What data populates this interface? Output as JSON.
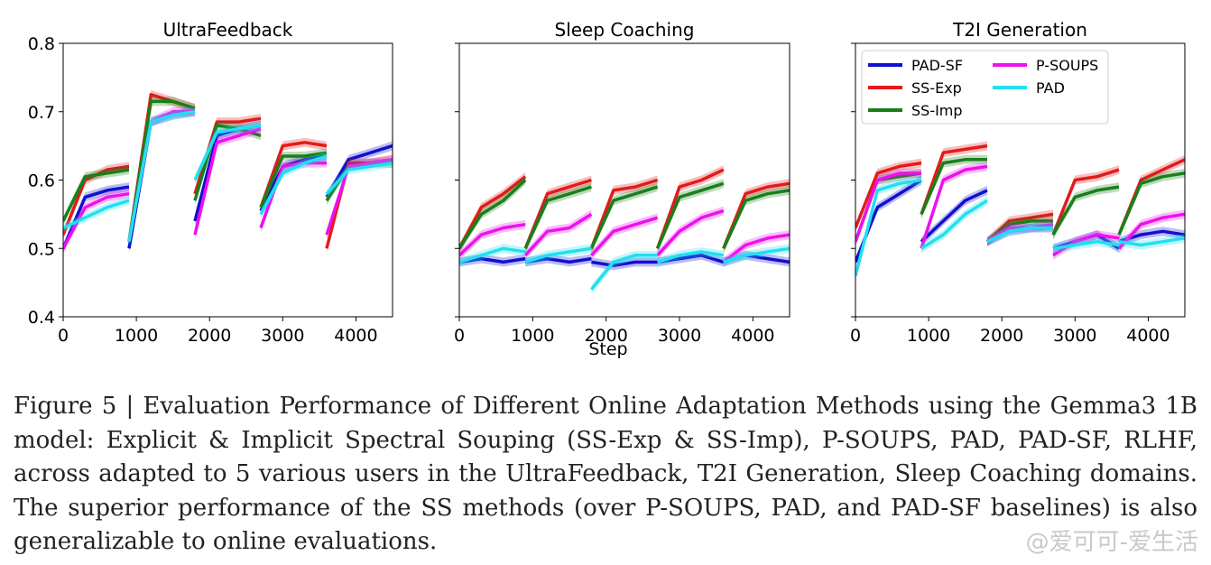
{
  "figure": {
    "caption": "Figure 5 | Evaluation Performance of Different Online Adaptation Methods using the Gemma3 1B model: Explicit & Implicit Spectral Souping (SS-Exp & SS-Imp), P-SOUPS, PAD, PAD-SF, RLHF, across adapted to 5 various users in the UltraFeedback, T2I Generation, Sleep Coaching domains. The superior performance of the SS methods (over P-SOUPS, PAD, and PAD-SF baselines) is also generalizable to online evaluations.",
    "watermark": "@爱可可-爱生活"
  },
  "colors": {
    "PAD-SF": "#1010d0",
    "SS-Exp": "#e41a1a",
    "SS-Imp": "#1a7f1a",
    "P-SOUPS": "#ee10ee",
    "PAD": "#20e0f0"
  },
  "chart_data": [
    {
      "type": "line",
      "title": "UltraFeedback",
      "xlabel": "",
      "ylabel": "",
      "xlim": [
        0,
        4500
      ],
      "ylim": [
        0.4,
        0.8
      ],
      "xticks": [
        0,
        1000,
        2000,
        3000,
        4000
      ],
      "yticks": [
        0.4,
        0.5,
        0.6,
        0.7,
        0.8
      ],
      "segments": [
        [
          0,
          900
        ],
        [
          900,
          1800
        ],
        [
          1800,
          2700
        ],
        [
          2700,
          3600
        ],
        [
          3600,
          4500
        ]
      ],
      "series": [
        {
          "name": "PAD-SF",
          "values": [
            [
              0.5,
              0.575,
              0.585,
              0.59
            ],
            [
              0.5,
              0.685,
              0.695,
              0.7
            ],
            [
              0.54,
              0.665,
              0.675,
              0.68
            ],
            [
              0.555,
              0.62,
              0.63,
              0.635
            ],
            [
              0.575,
              0.63,
              0.64,
              0.65
            ]
          ]
        },
        {
          "name": "SS-Exp",
          "values": [
            [
              0.52,
              0.6,
              0.615,
              0.62
            ],
            [
              0.51,
              0.725,
              0.715,
              0.705
            ],
            [
              0.58,
              0.685,
              0.685,
              0.69
            ],
            [
              0.56,
              0.65,
              0.655,
              0.65
            ],
            [
              0.5,
              0.625,
              0.625,
              0.63
            ]
          ]
        },
        {
          "name": "SS-Imp",
          "values": [
            [
              0.54,
              0.605,
              0.61,
              0.615
            ],
            [
              0.51,
              0.715,
              0.715,
              0.705
            ],
            [
              0.57,
              0.68,
              0.675,
              0.665
            ],
            [
              0.56,
              0.635,
              0.635,
              0.64
            ],
            [
              0.57,
              0.62,
              0.625,
              0.625
            ]
          ]
        },
        {
          "name": "P-SOUPS",
          "values": [
            [
              0.5,
              0.56,
              0.575,
              0.58
            ],
            [
              0.51,
              0.685,
              0.7,
              0.7
            ],
            [
              0.52,
              0.655,
              0.665,
              0.675
            ],
            [
              0.53,
              0.62,
              0.625,
              0.625
            ],
            [
              0.52,
              0.62,
              0.625,
              0.63
            ]
          ]
        },
        {
          "name": "PAD",
          "values": [
            [
              0.53,
              0.545,
              0.56,
              0.57
            ],
            [
              0.51,
              0.685,
              0.695,
              0.7
            ],
            [
              0.6,
              0.67,
              0.675,
              0.68
            ],
            [
              0.55,
              0.61,
              0.625,
              0.635
            ],
            [
              0.58,
              0.615,
              0.62,
              0.625
            ]
          ]
        }
      ]
    },
    {
      "type": "line",
      "title": "Sleep Coaching",
      "xlabel": "Step",
      "ylabel": "",
      "xlim": [
        0,
        4500
      ],
      "ylim": [
        0.4,
        0.8
      ],
      "xticks": [
        0,
        1000,
        2000,
        3000,
        4000
      ],
      "yticks": [
        0.4,
        0.5,
        0.6,
        0.7,
        0.8
      ],
      "segments": [
        [
          0,
          900
        ],
        [
          900,
          1800
        ],
        [
          1800,
          2700
        ],
        [
          2700,
          3600
        ],
        [
          3600,
          4500
        ]
      ],
      "series": [
        {
          "name": "PAD-SF",
          "values": [
            [
              0.48,
              0.485,
              0.48,
              0.485
            ],
            [
              0.48,
              0.485,
              0.48,
              0.485
            ],
            [
              0.48,
              0.475,
              0.48,
              0.48
            ],
            [
              0.48,
              0.485,
              0.49,
              0.48
            ],
            [
              0.48,
              0.49,
              0.485,
              0.48
            ]
          ]
        },
        {
          "name": "SS-Exp",
          "values": [
            [
              0.5,
              0.56,
              0.58,
              0.605
            ],
            [
              0.5,
              0.58,
              0.59,
              0.6
            ],
            [
              0.5,
              0.585,
              0.59,
              0.6
            ],
            [
              0.5,
              0.59,
              0.6,
              0.615
            ],
            [
              0.5,
              0.58,
              0.59,
              0.595
            ]
          ]
        },
        {
          "name": "SS-Imp",
          "values": [
            [
              0.5,
              0.55,
              0.57,
              0.6
            ],
            [
              0.5,
              0.57,
              0.58,
              0.59
            ],
            [
              0.5,
              0.57,
              0.58,
              0.59
            ],
            [
              0.5,
              0.575,
              0.585,
              0.595
            ],
            [
              0.5,
              0.57,
              0.58,
              0.585
            ]
          ]
        },
        {
          "name": "P-SOUPS",
          "values": [
            [
              0.49,
              0.52,
              0.53,
              0.535
            ],
            [
              0.49,
              0.525,
              0.53,
              0.55
            ],
            [
              0.49,
              0.525,
              0.535,
              0.545
            ],
            [
              0.49,
              0.525,
              0.545,
              0.555
            ],
            [
              0.48,
              0.505,
              0.515,
              0.52
            ]
          ]
        },
        {
          "name": "PAD",
          "values": [
            [
              0.48,
              0.49,
              0.5,
              0.495
            ],
            [
              0.48,
              0.49,
              0.495,
              0.5
            ],
            [
              0.44,
              0.48,
              0.49,
              0.49
            ],
            [
              0.48,
              0.49,
              0.495,
              0.49
            ],
            [
              0.48,
              0.49,
              0.495,
              0.5
            ]
          ]
        }
      ]
    },
    {
      "type": "line",
      "title": "T2I Generation",
      "xlabel": "",
      "ylabel": "",
      "xlim": [
        0,
        4500
      ],
      "ylim": [
        0.4,
        0.8
      ],
      "xticks": [
        0,
        1000,
        2000,
        3000,
        4000
      ],
      "yticks": [
        0.4,
        0.5,
        0.6,
        0.7,
        0.8
      ],
      "legend": "top-right",
      "segments": [
        [
          0,
          900
        ],
        [
          900,
          1800
        ],
        [
          1800,
          2700
        ],
        [
          2700,
          3600
        ],
        [
          3600,
          4500
        ]
      ],
      "series": [
        {
          "name": "PAD-SF",
          "values": [
            [
              0.48,
              0.56,
              0.58,
              0.6
            ],
            [
              0.51,
              0.54,
              0.57,
              0.585
            ],
            [
              0.51,
              0.525,
              0.53,
              0.53
            ],
            [
              0.5,
              0.51,
              0.52,
              0.5
            ],
            [
              0.51,
              0.52,
              0.525,
              0.52
            ]
          ]
        },
        {
          "name": "SS-Exp",
          "values": [
            [
              0.53,
              0.61,
              0.62,
              0.625
            ],
            [
              0.55,
              0.64,
              0.645,
              0.65
            ],
            [
              0.51,
              0.54,
              0.545,
              0.55
            ],
            [
              0.52,
              0.6,
              0.605,
              0.615
            ],
            [
              0.52,
              0.6,
              0.615,
              0.63
            ]
          ]
        },
        {
          "name": "SS-Imp",
          "values": [
            [
              0.51,
              0.6,
              0.605,
              0.61
            ],
            [
              0.55,
              0.625,
              0.63,
              0.63
            ],
            [
              0.51,
              0.535,
              0.54,
              0.54
            ],
            [
              0.52,
              0.575,
              0.585,
              0.59
            ],
            [
              0.52,
              0.595,
              0.605,
              0.61
            ]
          ]
        },
        {
          "name": "P-SOUPS",
          "values": [
            [
              0.51,
              0.6,
              0.61,
              0.61
            ],
            [
              0.5,
              0.6,
              0.615,
              0.62
            ],
            [
              0.51,
              0.53,
              0.53,
              0.535
            ],
            [
              0.49,
              0.51,
              0.52,
              0.515
            ],
            [
              0.5,
              0.535,
              0.545,
              0.55
            ]
          ]
        },
        {
          "name": "PAD",
          "values": [
            [
              0.46,
              0.585,
              0.595,
              0.6
            ],
            [
              0.5,
              0.52,
              0.55,
              0.57
            ],
            [
              0.51,
              0.525,
              0.53,
              0.53
            ],
            [
              0.5,
              0.505,
              0.51,
              0.505
            ],
            [
              0.51,
              0.505,
              0.51,
              0.515
            ]
          ]
        }
      ]
    }
  ]
}
